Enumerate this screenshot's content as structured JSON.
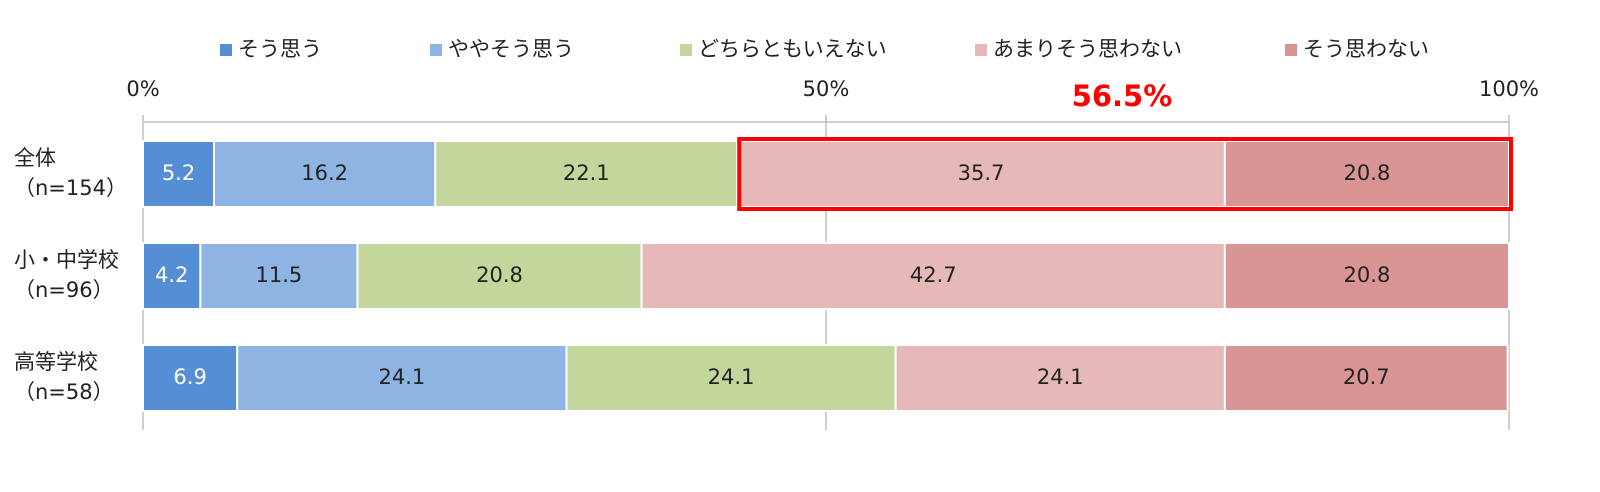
{
  "chart_data": {
    "type": "stacked_barh",
    "categories": [
      "全体",
      "小・中学校",
      "高等学校"
    ],
    "category_sublabels": [
      "（n=154）",
      "（n=96）",
      "（n=58）"
    ],
    "series": [
      {
        "name": "そう思う",
        "color": "#558ed5",
        "values": [
          5.2,
          4.2,
          6.9
        ]
      },
      {
        "name": "ややそう思う",
        "color": "#8db4e2",
        "values": [
          16.2,
          11.5,
          24.1
        ]
      },
      {
        "name": "どちらともいえない",
        "color": "#c3d69b",
        "values": [
          22.1,
          20.8,
          24.1
        ]
      },
      {
        "name": "あまりそう思わない",
        "color": "#e6b9b8",
        "values": [
          35.7,
          42.7,
          24.1
        ]
      },
      {
        "name": "そう思わない",
        "color": "#d99594",
        "values": [
          20.8,
          20.8,
          20.7
        ]
      }
    ],
    "xlim": [
      0,
      100
    ],
    "xticks": [
      {
        "value": 0,
        "label": "0%"
      },
      {
        "value": 50,
        "label": "50%"
      },
      {
        "value": 100,
        "label": "100%"
      }
    ],
    "grid": true,
    "legend": "top",
    "annotation": {
      "value": 56.5,
      "label": "56.5%",
      "color": "#ff0000"
    }
  }
}
